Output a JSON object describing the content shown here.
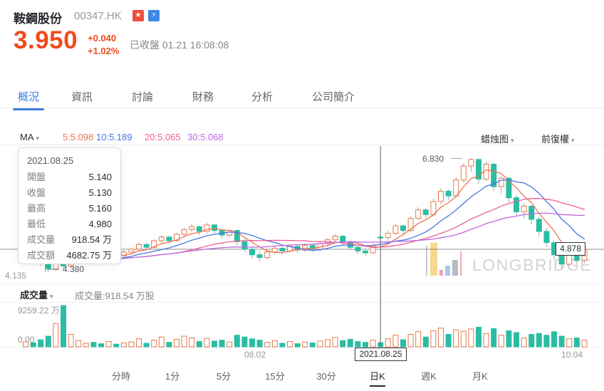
{
  "colors": {
    "accent_up": "#f04b1e",
    "tab_active": "#3c7de0",
    "candle_up": "#e5794a",
    "candle_down": "#2abda4",
    "ma5": "#ee7450",
    "ma10": "#4a74e4",
    "ma20": "#ee5f94",
    "ma30": "#be68e0",
    "badge_hk": "#ee4f3a",
    "badge_blue": "#3f86e8"
  },
  "header": {
    "stock_name": "鞍鋼股份",
    "ticker": "00347.HK",
    "badges": [
      {
        "glyph": "★"
      },
      {
        "glyph": "⚡"
      }
    ],
    "price": "3.950",
    "change": "+0.040",
    "change_pct": "+1.02%",
    "status": "已收盤 01.21 16:08:08"
  },
  "nav_tabs": [
    {
      "label": "概況"
    },
    {
      "label": "資訊"
    },
    {
      "label": "討論"
    },
    {
      "label": "財務"
    },
    {
      "label": "分析"
    },
    {
      "label": "公司簡介"
    }
  ],
  "toolbar": {
    "ma_label": "MA",
    "ma_items": [
      {
        "label": "5:5.098"
      },
      {
        "label": "10:5.189"
      },
      {
        "label": "20:5.065"
      },
      {
        "label": "30:5.068"
      }
    ],
    "chart_type": "蜡烛图",
    "adjust_type": "前復權",
    "caret": "▾"
  },
  "tooltip": {
    "date": "2021.08.25",
    "rows": [
      {
        "label": "開盤",
        "value": "5.140"
      },
      {
        "label": "收盤",
        "value": "5.130"
      },
      {
        "label": "最高",
        "value": "5.160"
      },
      {
        "label": "最低",
        "value": "4.980"
      },
      {
        "label": "成交量",
        "value": "918.54 万"
      },
      {
        "label": "成交額",
        "value": "4682.75 万"
      }
    ]
  },
  "axis": {
    "high_marker": "6.830",
    "low_marker": "4.380",
    "price_min": "4.135",
    "last_price": "4.878",
    "vol_max": "9259.22 万",
    "vol_min": "0.00",
    "x_left": "08.02",
    "x_mid": "2021.08.25",
    "x_right": "10.04"
  },
  "volume_pane": {
    "title": "成交量",
    "summary": "成交量:918.54 万股"
  },
  "watermark": {
    "text": "LONGBRIDGE"
  },
  "period_tabs": [
    {
      "label": "分時"
    },
    {
      "label": "1分"
    },
    {
      "label": "5分"
    },
    {
      "label": "15分"
    },
    {
      "label": "30分"
    },
    {
      "label": "日K"
    },
    {
      "label": "週K"
    },
    {
      "label": "月K"
    }
  ],
  "chart_data": {
    "type": "candlestick",
    "title": "00347.HK 日K",
    "ma_legend": {
      "ma5": 5.098,
      "ma10": 5.189,
      "ma20": 5.065,
      "ma30": 5.068
    },
    "y_axis": {
      "min": 4.135,
      "last_price": 4.878,
      "high_marker": 6.83,
      "low_marker": 4.38
    },
    "volume_axis": {
      "max_wan": 9259.22,
      "min_wan": 0.0
    },
    "highlighted_date": "2021.08.25",
    "highlighted_ohlc": {
      "open": 5.14,
      "close": 5.13,
      "high": 5.16,
      "low": 4.98,
      "volume_wan": 918.54,
      "turnover_wan": 4682.75
    },
    "x_labels": [
      {
        "label": "08.02",
        "candle_index": 30
      },
      {
        "label": "2021.08.25",
        "candle_index": 47
      },
      {
        "label": "10.04",
        "candle_index": 74
      }
    ],
    "candles": [
      [
        4.74,
        4.84,
        4.7,
        4.8
      ],
      [
        4.8,
        4.82,
        4.66,
        4.72
      ],
      [
        4.72,
        4.74,
        4.52,
        4.58
      ],
      [
        4.58,
        4.62,
        4.38,
        4.46
      ],
      [
        4.46,
        4.65,
        4.42,
        4.6
      ],
      [
        4.6,
        4.64,
        4.46,
        4.52
      ],
      [
        4.52,
        4.68,
        4.5,
        4.64
      ],
      [
        4.64,
        4.76,
        4.6,
        4.72
      ],
      [
        4.72,
        4.8,
        4.66,
        4.76
      ],
      [
        4.76,
        4.8,
        4.68,
        4.72
      ],
      [
        4.72,
        4.78,
        4.64,
        4.68
      ],
      [
        4.68,
        4.82,
        4.66,
        4.78
      ],
      [
        4.78,
        4.82,
        4.7,
        4.74
      ],
      [
        4.74,
        4.86,
        4.7,
        4.82
      ],
      [
        4.82,
        4.92,
        4.78,
        4.88
      ],
      [
        4.88,
        5.02,
        4.84,
        4.98
      ],
      [
        4.98,
        5.02,
        4.86,
        4.92
      ],
      [
        4.92,
        5.1,
        4.9,
        5.06
      ],
      [
        5.06,
        5.18,
        5.0,
        5.14
      ],
      [
        5.14,
        5.16,
        5.0,
        5.06
      ],
      [
        5.06,
        5.24,
        5.04,
        5.2
      ],
      [
        5.2,
        5.34,
        5.14,
        5.3
      ],
      [
        5.3,
        5.42,
        5.24,
        5.36
      ],
      [
        5.36,
        5.38,
        5.18,
        5.26
      ],
      [
        5.26,
        5.44,
        5.22,
        5.4
      ],
      [
        5.4,
        5.42,
        5.22,
        5.28
      ],
      [
        5.28,
        5.32,
        5.1,
        5.18
      ],
      [
        5.18,
        5.32,
        5.14,
        5.28
      ],
      [
        5.28,
        5.3,
        4.96,
        5.04
      ],
      [
        5.04,
        5.1,
        4.82,
        4.88
      ],
      [
        4.88,
        4.94,
        4.68,
        4.76
      ],
      [
        4.76,
        4.84,
        4.62,
        4.7
      ],
      [
        4.7,
        4.86,
        4.66,
        4.82
      ],
      [
        4.82,
        4.94,
        4.76,
        4.9
      ],
      [
        4.9,
        4.92,
        4.76,
        4.84
      ],
      [
        4.84,
        4.98,
        4.8,
        4.94
      ],
      [
        4.94,
        4.96,
        4.8,
        4.86
      ],
      [
        4.86,
        5.0,
        4.82,
        4.96
      ],
      [
        4.96,
        4.98,
        4.82,
        4.88
      ],
      [
        4.88,
        5.04,
        4.84,
        5.0
      ],
      [
        5.0,
        5.12,
        4.94,
        5.08
      ],
      [
        5.08,
        5.2,
        5.02,
        5.16
      ],
      [
        5.16,
        5.18,
        4.98,
        5.04
      ],
      [
        5.04,
        5.08,
        4.86,
        4.92
      ],
      [
        4.92,
        4.96,
        4.78,
        4.84
      ],
      [
        4.84,
        4.9,
        4.74,
        4.8
      ],
      [
        4.8,
        5.0,
        4.78,
        4.96
      ],
      [
        5.14,
        5.16,
        4.98,
        5.13
      ],
      [
        5.13,
        5.28,
        5.06,
        5.22
      ],
      [
        5.22,
        5.42,
        5.18,
        5.38
      ],
      [
        5.38,
        5.4,
        5.2,
        5.28
      ],
      [
        5.28,
        5.58,
        5.24,
        5.54
      ],
      [
        5.54,
        5.78,
        5.5,
        5.72
      ],
      [
        5.72,
        5.76,
        5.54,
        5.62
      ],
      [
        5.62,
        5.96,
        5.58,
        5.9
      ],
      [
        5.9,
        6.18,
        5.84,
        6.12
      ],
      [
        6.12,
        6.16,
        5.92,
        6.02
      ],
      [
        6.02,
        6.42,
        5.98,
        6.36
      ],
      [
        6.36,
        6.72,
        6.3,
        6.66
      ],
      [
        6.66,
        6.83,
        6.54,
        6.8
      ],
      [
        6.8,
        6.82,
        6.28,
        6.38
      ],
      [
        6.38,
        6.76,
        6.34,
        6.7
      ],
      [
        6.7,
        6.72,
        6.12,
        6.22
      ],
      [
        6.22,
        6.46,
        6.08,
        6.4
      ],
      [
        6.4,
        6.42,
        5.88,
        5.98
      ],
      [
        5.98,
        6.04,
        5.58,
        5.68
      ],
      [
        5.68,
        5.86,
        5.54,
        5.8
      ],
      [
        5.8,
        5.82,
        5.42,
        5.52
      ],
      [
        5.52,
        5.58,
        5.16,
        5.26
      ],
      [
        5.26,
        5.34,
        4.92,
        5.02
      ],
      [
        5.02,
        5.06,
        4.66,
        4.76
      ],
      [
        4.76,
        4.84,
        4.46,
        4.56
      ],
      [
        4.56,
        4.92,
        4.52,
        4.86
      ],
      [
        4.86,
        4.88,
        4.56,
        4.64
      ],
      [
        4.64,
        4.9,
        4.58,
        4.878
      ]
    ],
    "volumes_wan": [
      1100,
      900,
      1600,
      2400,
      5200,
      9259.22,
      2800,
      1400,
      800,
      1000,
      700,
      1200,
      600,
      900,
      1100,
      1800,
      800,
      1500,
      2200,
      1000,
      1700,
      2400,
      2000,
      1200,
      1900,
      1300,
      1500,
      1100,
      2600,
      2200,
      1800,
      1500,
      1000,
      1400,
      800,
      1200,
      700,
      1100,
      900,
      1300,
      1600,
      2100,
      1400,
      1700,
      1200,
      1000,
      1500,
      918.54,
      1800,
      2600,
      1600,
      2800,
      3400,
      2200,
      3600,
      4200,
      2800,
      3800,
      3500,
      4000,
      4400,
      3000,
      4100,
      2600,
      3600,
      3200,
      2000,
      2800,
      3000,
      2600,
      3400,
      2400,
      1800,
      2000,
      1500
    ]
  }
}
